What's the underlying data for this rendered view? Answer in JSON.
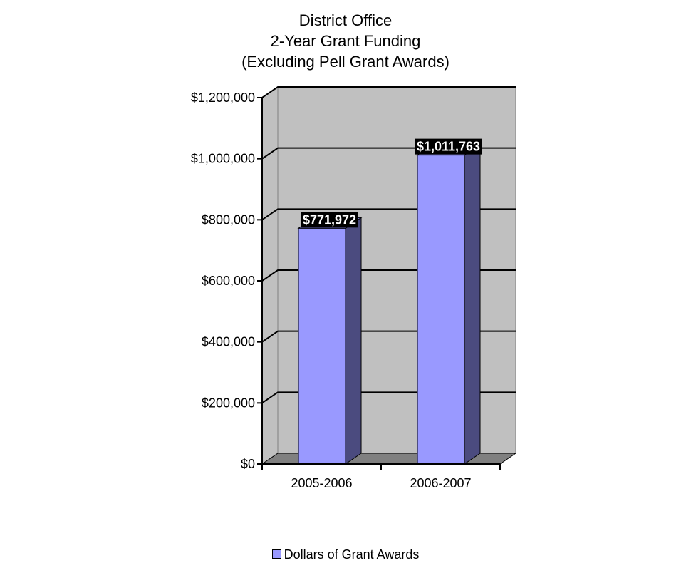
{
  "chart_data": {
    "type": "bar",
    "title": [
      "District Office",
      "2-Year Grant Funding",
      "(Excluding Pell Grant Awards)"
    ],
    "categories": [
      "2005-2006",
      "2006-2007"
    ],
    "series": [
      {
        "name": "Dollars of Grant Awards",
        "values": [
          771972,
          1011763
        ],
        "data_labels": [
          "$771,972",
          "$1,011,763"
        ]
      }
    ],
    "ylim": [
      0,
      1200000
    ],
    "yticks": [
      0,
      200000,
      400000,
      600000,
      800000,
      1000000,
      1200000
    ],
    "ytick_labels": [
      "$0",
      "$200,000",
      "$400,000",
      "$600,000",
      "$800,000",
      "$1,000,000",
      "$1,200,000"
    ],
    "grid": true,
    "legend_position": "bottom",
    "style": "3d-column",
    "colors": {
      "bar_front": "#9999ff",
      "bar_side": "#4b4b7f",
      "wall": "#c0c0c0",
      "floor": "#808080",
      "label_bg": "#000000",
      "label_text": "#ffffff"
    }
  }
}
